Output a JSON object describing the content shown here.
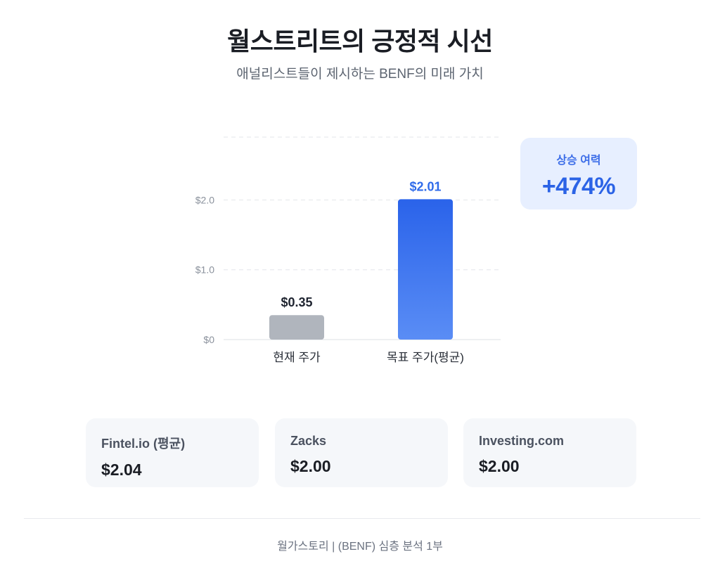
{
  "header": {
    "title": "월스트리트의 긍정적 시선",
    "subtitle": "애널리스트들이 제시하는 BENF의 미래 가치"
  },
  "chart_data": {
    "type": "bar",
    "categories": [
      "현재 주가",
      "목표 주가(평균)"
    ],
    "values": [
      0.35,
      2.01
    ],
    "value_labels": [
      "$0.35",
      "$2.01"
    ],
    "bar_colors": [
      "#b0b5bd",
      "#2f6bea"
    ],
    "value_label_colors": [
      "#1f2430",
      "#2f6bea"
    ],
    "ylim": [
      0,
      2.9
    ],
    "y_ticks": [
      {
        "value": 0,
        "label": "$0"
      },
      {
        "value": 1.0,
        "label": "$1.0"
      },
      {
        "value": 2.0,
        "label": "$2.0"
      }
    ],
    "gridlines": [
      1.0,
      2.0,
      2.9
    ],
    "grid": true,
    "xlabel": "",
    "ylabel": ""
  },
  "upside": {
    "label": "상승 여력",
    "value": "+474%"
  },
  "sources": [
    {
      "name": "Fintel.io (평균)",
      "value": "$2.04"
    },
    {
      "name": "Zacks",
      "value": "$2.00"
    },
    {
      "name": "Investing.com",
      "value": "$2.00"
    }
  ],
  "footer": {
    "text": "월가스토리 | (BENF) 심층 분석 1부"
  },
  "colors": {
    "accent": "#2f6bea",
    "muted_bar": "#b0b5bd",
    "card_bg": "#f5f7fa",
    "badge_bg": "#e7efff"
  }
}
